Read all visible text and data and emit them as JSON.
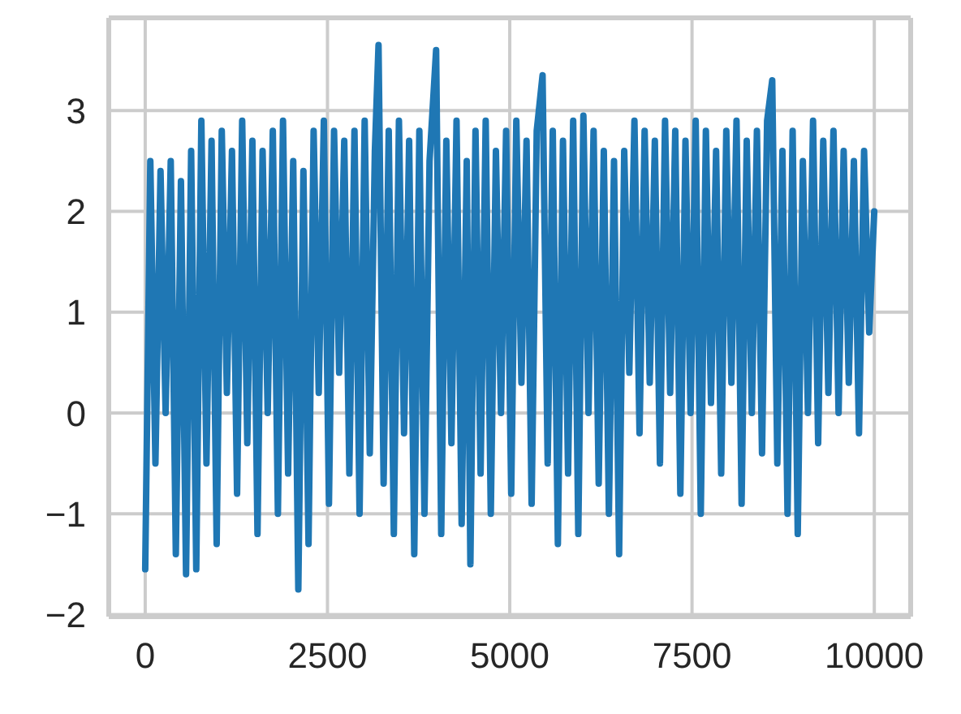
{
  "chart_data": {
    "type": "line",
    "xlim": [
      -500,
      10499
    ],
    "ylim": [
      -2.02,
      3.92
    ],
    "xticks": [
      0,
      2500,
      5000,
      7500,
      10000
    ],
    "yticks": [
      -2,
      -1,
      0,
      1,
      2,
      3
    ],
    "grid": true,
    "marker": "none",
    "line_style": "solid",
    "series": [
      {
        "color": "#1f77b4",
        "x": [
          0,
          70,
          140,
          210,
          280,
          350,
          420,
          490,
          560,
          630,
          700,
          770,
          840,
          910,
          980,
          1050,
          1120,
          1190,
          1260,
          1330,
          1400,
          1470,
          1540,
          1610,
          1680,
          1750,
          1820,
          1890,
          1960,
          2030,
          2100,
          2170,
          2240,
          2310,
          2380,
          2450,
          2520,
          2590,
          2660,
          2730,
          2800,
          2870,
          2940,
          3010,
          3080,
          3150,
          3200,
          3270,
          3340,
          3410,
          3480,
          3550,
          3620,
          3690,
          3760,
          3830,
          3900,
          3990,
          4060,
          4130,
          4200,
          4270,
          4340,
          4410,
          4460,
          4530,
          4600,
          4670,
          4740,
          4810,
          4880,
          4950,
          5020,
          5090,
          5160,
          5230,
          5300,
          5370,
          5450,
          5520,
          5590,
          5660,
          5730,
          5800,
          5870,
          5940,
          6010,
          6080,
          6150,
          6220,
          6290,
          6360,
          6430,
          6500,
          6570,
          6640,
          6710,
          6780,
          6850,
          6920,
          6990,
          7060,
          7130,
          7200,
          7270,
          7340,
          7410,
          7480,
          7550,
          7620,
          7690,
          7760,
          7830,
          7900,
          7970,
          8040,
          8110,
          8180,
          8250,
          8320,
          8390,
          8460,
          8530,
          8600,
          8670,
          8740,
          8810,
          8880,
          8950,
          9020,
          9090,
          9160,
          9230,
          9300,
          9370,
          9440,
          9510,
          9580,
          9650,
          9720,
          9790,
          9860,
          9930,
          9999
        ],
        "values": [
          -1.55,
          2.5,
          -0.5,
          2.4,
          0.0,
          2.5,
          -1.4,
          2.3,
          -1.6,
          2.6,
          -1.55,
          2.9,
          -0.5,
          2.7,
          -1.3,
          2.8,
          0.2,
          2.6,
          -0.8,
          2.9,
          -0.3,
          2.7,
          -1.2,
          2.6,
          0.0,
          2.8,
          -1.0,
          2.9,
          -0.6,
          2.5,
          -1.75,
          2.4,
          -1.3,
          2.8,
          0.2,
          2.9,
          -0.9,
          2.8,
          0.4,
          2.7,
          -0.6,
          2.8,
          -1.0,
          2.9,
          -0.4,
          2.6,
          3.65,
          -0.7,
          2.8,
          -1.2,
          2.9,
          -0.2,
          2.7,
          -1.4,
          2.8,
          -1.0,
          2.5,
          3.6,
          -1.2,
          2.7,
          -0.3,
          2.9,
          -1.1,
          2.5,
          -1.5,
          2.8,
          -0.6,
          2.9,
          -1.0,
          2.6,
          0.0,
          2.8,
          -0.8,
          2.9,
          0.3,
          2.7,
          -0.9,
          2.8,
          3.35,
          -0.5,
          2.8,
          -1.3,
          2.7,
          -0.6,
          2.9,
          -1.2,
          2.95,
          0.0,
          2.8,
          -0.7,
          2.6,
          -1.0,
          2.5,
          -1.4,
          2.6,
          0.4,
          2.9,
          -0.2,
          2.8,
          0.3,
          2.7,
          -0.5,
          2.9,
          0.2,
          2.8,
          -0.8,
          2.7,
          0.0,
          2.9,
          -1.0,
          2.8,
          0.1,
          2.6,
          -0.6,
          2.8,
          0.3,
          2.9,
          -0.9,
          2.7,
          0.0,
          2.8,
          -0.4,
          2.9,
          3.3,
          -0.5,
          2.6,
          -1.0,
          2.8,
          -1.2,
          2.5,
          0.0,
          2.9,
          -0.3,
          2.7,
          0.2,
          2.8,
          0.0,
          2.6,
          0.3,
          2.5,
          -0.2,
          2.6,
          0.8,
          2.0
        ]
      }
    ]
  }
}
